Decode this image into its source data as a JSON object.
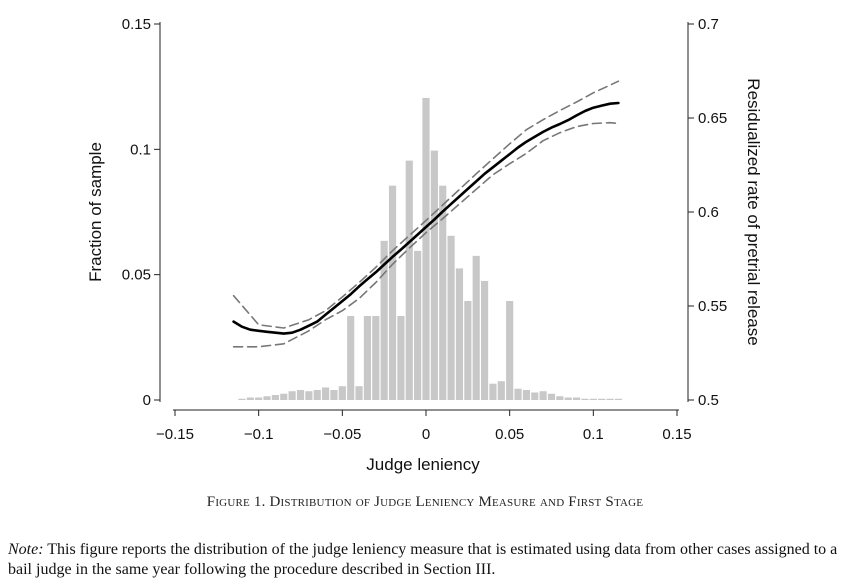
{
  "figure": {
    "caption_prefix": "Figure 1.",
    "caption_title": "Distribution of Judge Leniency Measure and First Stage",
    "note_label": "Note:",
    "note_text": "This figure reports the distribution of the judge leniency measure that is estimated using data from other cases assigned to a bail judge in the same year following the procedure described in Section III."
  },
  "chart_data": {
    "type": "bar",
    "xlabel": "Judge leniency",
    "ylabel_left": "Fraction of sample",
    "ylabel_right": "Residualized rate of pretrial release",
    "xlim": [
      -0.15,
      0.15
    ],
    "ylim_left": [
      0,
      0.15
    ],
    "ylim_right": [
      0.5,
      0.7
    ],
    "x_ticks": [
      "−0.15",
      "−0.1",
      "−0.05",
      "0",
      "0.05",
      "0.1",
      "0.15"
    ],
    "y_ticks_left": [
      "0",
      "0.05",
      "0.1",
      "0.15"
    ],
    "y_ticks_right": [
      "0.5",
      "0.55",
      "0.6",
      "0.65",
      "0.7"
    ],
    "bar_color": "#c8c8c8",
    "histogram": {
      "bin_width": 0.005,
      "bin_centers": [
        -0.11,
        -0.105,
        -0.1,
        -0.095,
        -0.09,
        -0.085,
        -0.08,
        -0.075,
        -0.07,
        -0.065,
        -0.06,
        -0.055,
        -0.05,
        -0.045,
        -0.04,
        -0.035,
        -0.03,
        -0.025,
        -0.02,
        -0.015,
        -0.01,
        -0.005,
        0,
        0.005,
        0.01,
        0.015,
        0.02,
        0.025,
        0.03,
        0.035,
        0.04,
        0.045,
        0.05,
        0.055,
        0.06,
        0.065,
        0.07,
        0.075,
        0.08,
        0.085,
        0.09,
        0.095,
        0.1,
        0.105,
        0.11,
        0.115
      ],
      "values": [
        0.0005,
        0.001,
        0.001,
        0.0015,
        0.002,
        0.0025,
        0.0035,
        0.004,
        0.0035,
        0.004,
        0.005,
        0.004,
        0.0055,
        0.0335,
        0.0055,
        0.0335,
        0.0335,
        0.0635,
        0.0855,
        0.0335,
        0.0955,
        0.0595,
        0.1205,
        0.0995,
        0.0855,
        0.0655,
        0.0525,
        0.0395,
        0.0575,
        0.0475,
        0.0065,
        0.0075,
        0.0395,
        0.0045,
        0.004,
        0.003,
        0.0035,
        0.0025,
        0.0015,
        0.001,
        0.001,
        0.0005,
        0.0005,
        0.0005,
        0.0005,
        0.0005
      ]
    },
    "series": [
      {
        "name": "First stage fit",
        "style": "solid",
        "color": "#000000",
        "x": [
          -0.115,
          -0.11,
          -0.105,
          -0.1,
          -0.095,
          -0.09,
          -0.085,
          -0.08,
          -0.075,
          -0.07,
          -0.065,
          -0.06,
          -0.055,
          -0.05,
          -0.045,
          -0.04,
          -0.035,
          -0.03,
          -0.025,
          -0.02,
          -0.015,
          -0.01,
          -0.005,
          0,
          0.005,
          0.01,
          0.015,
          0.02,
          0.025,
          0.03,
          0.035,
          0.04,
          0.045,
          0.05,
          0.055,
          0.06,
          0.065,
          0.07,
          0.075,
          0.08,
          0.085,
          0.09,
          0.095,
          0.1,
          0.105,
          0.11,
          0.115
        ],
        "values": [
          0.5417,
          0.539,
          0.5374,
          0.5368,
          0.5363,
          0.5358,
          0.5353,
          0.5358,
          0.5374,
          0.5395,
          0.5417,
          0.5454,
          0.549,
          0.5526,
          0.5563,
          0.5604,
          0.5642,
          0.5679,
          0.5721,
          0.5761,
          0.58,
          0.584,
          0.588,
          0.592,
          0.596,
          0.6002,
          0.6043,
          0.6083,
          0.6123,
          0.6163,
          0.6203,
          0.6238,
          0.6273,
          0.6308,
          0.6343,
          0.6374,
          0.64,
          0.6426,
          0.6449,
          0.6468,
          0.6489,
          0.6514,
          0.6537,
          0.6555,
          0.6566,
          0.6576,
          0.658
        ]
      },
      {
        "name": "Upper confidence bound",
        "style": "dashed",
        "color": "#777777",
        "x": [
          -0.115,
          -0.1,
          -0.085,
          -0.07,
          -0.06,
          -0.05,
          -0.04,
          -0.03,
          -0.02,
          -0.01,
          0,
          0.01,
          0.02,
          0.03,
          0.04,
          0.05,
          0.06,
          0.07,
          0.08,
          0.09,
          0.1,
          0.11,
          0.115
        ],
        "values": [
          0.5555,
          0.54,
          0.5383,
          0.5427,
          0.5475,
          0.5548,
          0.5625,
          0.5706,
          0.5794,
          0.5875,
          0.5955,
          0.6037,
          0.612,
          0.6203,
          0.6283,
          0.6363,
          0.6438,
          0.6491,
          0.654,
          0.6585,
          0.6634,
          0.6675,
          0.6696
        ]
      },
      {
        "name": "Lower confidence bound",
        "style": "dashed",
        "color": "#777777",
        "x": [
          -0.115,
          -0.1,
          -0.085,
          -0.07,
          -0.06,
          -0.05,
          -0.04,
          -0.03,
          -0.02,
          -0.01,
          0,
          0.01,
          0.02,
          0.03,
          0.04,
          0.05,
          0.06,
          0.07,
          0.08,
          0.09,
          0.1,
          0.11,
          0.115
        ],
        "values": [
          0.5283,
          0.5283,
          0.5299,
          0.5368,
          0.5427,
          0.5475,
          0.554,
          0.5625,
          0.5722,
          0.5808,
          0.589,
          0.5965,
          0.6043,
          0.6121,
          0.6198,
          0.6257,
          0.6312,
          0.6379,
          0.6422,
          0.6454,
          0.6471,
          0.6475,
          0.6471
        ]
      }
    ]
  }
}
